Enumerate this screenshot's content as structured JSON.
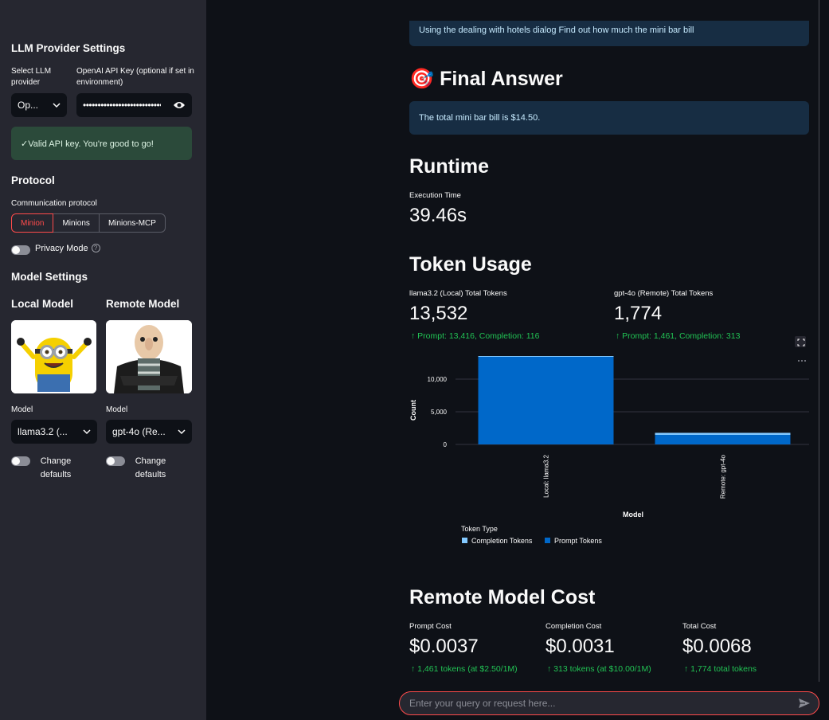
{
  "sidebar": {
    "provider_heading": "LLM Provider Settings",
    "select_provider_label": "Select LLM provider",
    "provider_value": "Op...",
    "api_key_label": "OpenAI API Key (optional if set in environment)",
    "api_key_mask": "••••••••••••••••••••••••••••••••",
    "success_text": "✓Valid API key. You're good to go!",
    "protocol_heading": "Protocol",
    "protocol_label": "Communication protocol",
    "protocol_options": [
      "Minion",
      "Minions",
      "Minions-MCP"
    ],
    "privacy_label": "Privacy Mode",
    "help_glyph": "?",
    "model_settings_heading": "Model Settings",
    "local_model_heading": "Local Model",
    "remote_model_heading": "Remote Model",
    "local_model_label": "Model",
    "local_model_value": "llama3.2 (...",
    "remote_model_label": "Model",
    "remote_model_value": "gpt-4o (Re...",
    "change_defaults_label": "Change defaults"
  },
  "main": {
    "task_text": "Using the dealing with hotels dialog Find out how much the mini bar bill",
    "final_answer_icon": "🎯",
    "final_answer_heading": "Final Answer",
    "final_answer_text": "The total mini bar bill is $14.50.",
    "runtime_heading": "Runtime",
    "exec_time_label": "Execution Time",
    "exec_time_value": "39.46s",
    "token_heading": "Token Usage",
    "local_tokens_label": "llama3.2 (Local) Total Tokens",
    "local_tokens_value": "13,532",
    "local_tokens_delta": "↑ Prompt: 13,416, Completion: 116",
    "remote_tokens_label": "gpt-4o (Remote) Total Tokens",
    "remote_tokens_value": "1,774",
    "remote_tokens_delta": "↑ Prompt: 1,461, Completion: 313",
    "cost_heading": "Remote Model Cost",
    "prompt_cost_label": "Prompt Cost",
    "prompt_cost_value": "$0.0037",
    "prompt_cost_delta": "↑ 1,461 tokens (at $2.50/1M)",
    "completion_cost_label": "Completion Cost",
    "completion_cost_value": "$0.0031",
    "completion_cost_delta": "↑ 313 tokens (at $10.00/1M)",
    "total_cost_label": "Total Cost",
    "total_cost_value": "$0.0068",
    "total_cost_delta": "↑ 1,774 total tokens"
  },
  "chat": {
    "placeholder": "Enter your query or request here..."
  },
  "colors": {
    "accent": "#ff4b4b",
    "success_bg": "#2b4a3a",
    "info_bg": "#172d43",
    "delta_green": "#21c354",
    "completion_color": "#83c9ff",
    "prompt_color": "#0068c9"
  },
  "chart_data": {
    "type": "bar",
    "stacked": true,
    "categories": [
      "Local: llama3.2",
      "Remote: gpt-4o"
    ],
    "series": [
      {
        "name": "Completion Tokens",
        "values": [
          116,
          313
        ]
      },
      {
        "name": "Prompt Tokens",
        "values": [
          13416,
          1461
        ]
      }
    ],
    "xlabel": "Model",
    "ylabel": "Count",
    "yticks": [
      "0",
      "5,000",
      "10,000"
    ],
    "ytick_values": [
      0,
      5000,
      10000
    ],
    "ylim": [
      0,
      13532
    ],
    "legend_title": "Token Type",
    "legend_position": "bottom-left",
    "grid": true
  }
}
